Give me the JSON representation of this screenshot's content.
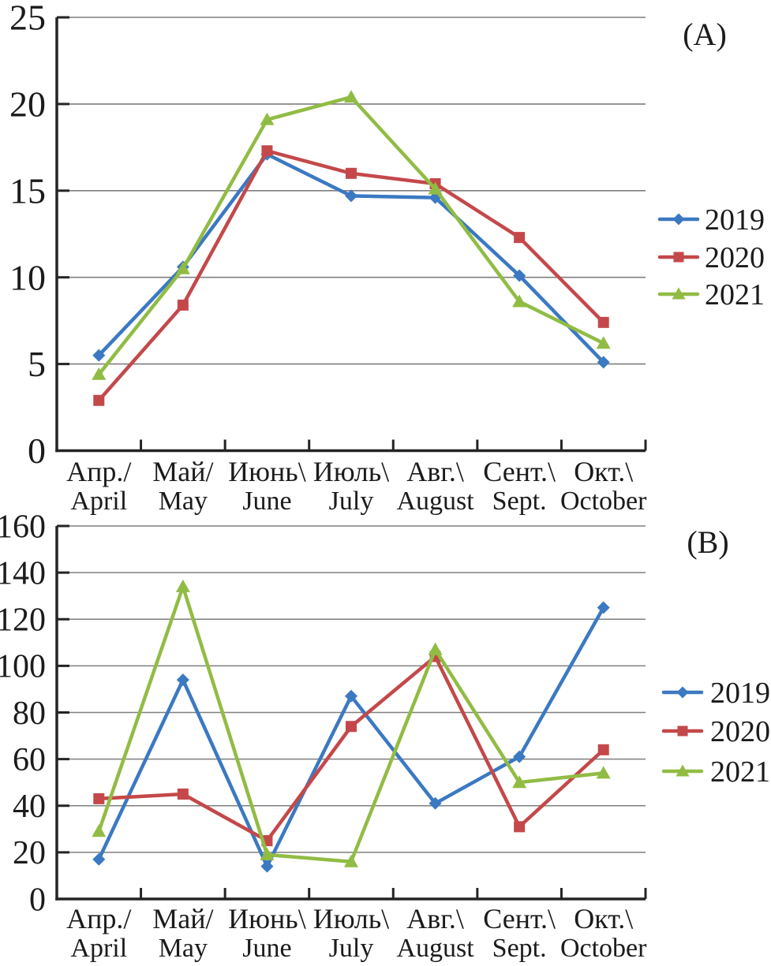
{
  "figure": {
    "description": "Two stacked line charts comparing monthly values for 2019, 2020 and 2021",
    "panel_labels": [
      "(A)",
      "(B)"
    ]
  },
  "chart_data": [
    {
      "type": "line",
      "panel_label": "(A)",
      "categories_ru": [
        "Апр./",
        "Май/",
        "Июнь\\",
        "Июль\\",
        "Авг.\\",
        "Сент.\\",
        "Окт.\\"
      ],
      "categories_en": [
        "April",
        "May",
        "June",
        "July",
        "August",
        "Sept.",
        "October"
      ],
      "ylim": [
        0,
        25
      ],
      "ytick_step": 5,
      "yticks": [
        "0",
        "5",
        "10",
        "15",
        "20",
        "25"
      ],
      "grid": true,
      "legend_position": "right",
      "series": [
        {
          "name": "2019",
          "marker": "diamond",
          "color": "#3b79c2",
          "values": [
            5.5,
            10.6,
            17.1,
            14.7,
            14.6,
            10.1,
            5.1
          ]
        },
        {
          "name": "2020",
          "marker": "square",
          "color": "#c4484a",
          "values": [
            2.9,
            8.4,
            17.3,
            16.0,
            15.4,
            12.3,
            7.4
          ]
        },
        {
          "name": "2021",
          "marker": "triangle",
          "color": "#91bc44",
          "values": [
            4.4,
            10.5,
            19.1,
            20.4,
            15.1,
            8.6,
            6.2
          ]
        }
      ]
    },
    {
      "type": "line",
      "panel_label": "(B)",
      "categories_ru": [
        "Апр./",
        "Май/",
        "Июнь\\",
        "Июль\\",
        "Авг.\\",
        "Сент.\\",
        "Окт.\\"
      ],
      "categories_en": [
        "April",
        "May",
        "June",
        "July",
        "August",
        "Sept.",
        "October"
      ],
      "ylim": [
        0,
        160
      ],
      "ytick_step": 20,
      "yticks": [
        "0",
        "20",
        "40",
        "60",
        "80",
        "100",
        "120",
        "140",
        "160"
      ],
      "grid": true,
      "legend_position": "right",
      "series": [
        {
          "name": "2019",
          "marker": "diamond",
          "color": "#3b79c2",
          "values": [
            17,
            94,
            14,
            87,
            41,
            61,
            125
          ]
        },
        {
          "name": "2020",
          "marker": "square",
          "color": "#c4484a",
          "values": [
            43,
            45,
            25,
            74,
            104,
            31,
            64
          ]
        },
        {
          "name": "2021",
          "marker": "triangle",
          "color": "#91bc44",
          "values": [
            29,
            134,
            19,
            16,
            107,
            50,
            54
          ]
        }
      ]
    }
  ],
  "colors": {
    "axis": "#242424",
    "gridline": "#7f7f7f",
    "text": "#1b1b1b",
    "series_2019": "#3b79c2",
    "series_2020": "#c4484a",
    "series_2021": "#91bc44"
  }
}
